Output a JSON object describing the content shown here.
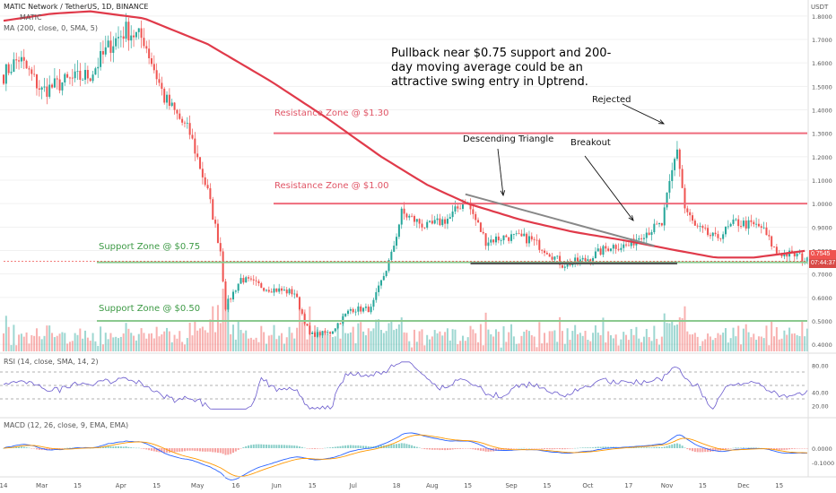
{
  "header": {
    "title": "MATIC Network / TetherUS, 1D, BINANCE",
    "symbol": "MATIC",
    "ma_label": "MA (200, close, 0, SMA, 5)",
    "currency": "USDT"
  },
  "annotations": {
    "note_lines": [
      "Pullback near $0.75 support and 200-",
      "day moving average could be an",
      "attractive swing entry in Uptrend."
    ],
    "rejected": "Rejected",
    "breakout": "Breakout",
    "descending_triangle": "Descending Triangle"
  },
  "zones": {
    "resistance_130": "Resistance Zone @ $1.30",
    "resistance_100": "Resistance Zone @ $1.00",
    "support_075": "Support Zone @ $0.75",
    "support_050": "Support Zone @ $0.50"
  },
  "price_tag": {
    "price": "0.7545",
    "countdown": "07:44:37"
  },
  "colors": {
    "up": "#26a69a",
    "down": "#ef5350",
    "ma": "#e03a4a",
    "resistance": "#ef6b7c",
    "support": "#8bc98f",
    "rsi": "#6a5acd",
    "macd": "#2962ff",
    "signal": "#ff9800",
    "triangle": "#888888"
  },
  "chart_data": {
    "type": "candlestick",
    "price_axis_ticks": [
      "1.8000",
      "1.7000",
      "1.6000",
      "1.5000",
      "1.4000",
      "1.3000",
      "1.2000",
      "1.1000",
      "1.0000",
      "0.9000",
      "0.8000",
      "0.7000",
      "0.6000",
      "0.5000",
      "0.4000"
    ],
    "ylim": [
      0.37,
      1.83
    ],
    "x_labels": [
      "14",
      "Mar",
      "15",
      "Apr",
      "15",
      "May",
      "16",
      "Jun",
      "15",
      "Jul",
      "18",
      "Aug",
      "15",
      "Sep",
      "15",
      "Oct",
      "17",
      "Nov",
      "15",
      "Dec",
      "15"
    ],
    "ohlc_anchors": [
      [
        "Feb 14",
        1.55
      ],
      [
        "Feb 20",
        1.62
      ],
      [
        "Mar 1",
        1.48
      ],
      [
        "Mar 10",
        1.52
      ],
      [
        "Mar 20",
        1.55
      ],
      [
        "Mar 28",
        1.68
      ],
      [
        "Apr 3",
        1.74
      ],
      [
        "Apr 10",
        1.7
      ],
      [
        "Apr 18",
        1.45
      ],
      [
        "Apr 28",
        1.3
      ],
      [
        "May 5",
        1.05
      ],
      [
        "May 10",
        0.8
      ],
      [
        "May 12",
        0.56
      ],
      [
        "May 18",
        0.68
      ],
      [
        "May 28",
        0.64
      ],
      [
        "Jun 8",
        0.62
      ],
      [
        "Jun 14",
        0.44
      ],
      [
        "Jun 22",
        0.45
      ],
      [
        "Jun 30",
        0.55
      ],
      [
        "Jul 8",
        0.55
      ],
      [
        "Jul 16",
        0.78
      ],
      [
        "Jul 20",
        0.96
      ],
      [
        "Jul 30",
        0.9
      ],
      [
        "Aug 8",
        0.94
      ],
      [
        "Aug 14",
        1.02
      ],
      [
        "Aug 22",
        0.84
      ],
      [
        "Aug 30",
        0.86
      ],
      [
        "Sep 8",
        0.85
      ],
      [
        "Sep 15",
        0.8
      ],
      [
        "Sep 21",
        0.74
      ],
      [
        "Sep 30",
        0.76
      ],
      [
        "Oct 10",
        0.82
      ],
      [
        "Oct 17",
        0.82
      ],
      [
        "Oct 22",
        0.87
      ],
      [
        "Oct 30",
        0.91
      ],
      [
        "Nov 2",
        1.08
      ],
      [
        "Nov 5",
        1.24
      ],
      [
        "Nov 8",
        0.98
      ],
      [
        "Nov 12",
        0.9
      ],
      [
        "Nov 20",
        0.85
      ],
      [
        "Nov 28",
        0.92
      ],
      [
        "Dec 8",
        0.9
      ],
      [
        "Dec 14",
        0.79
      ],
      [
        "Dec 22",
        0.78
      ],
      [
        "Dec 26",
        0.7545
      ]
    ],
    "ma200_anchors": [
      [
        "Feb 14",
        1.78
      ],
      [
        "Mar 5",
        1.81
      ],
      [
        "Mar 20",
        1.82
      ],
      [
        "Apr 10",
        1.79
      ],
      [
        "May 5",
        1.68
      ],
      [
        "May 30",
        1.52
      ],
      [
        "Jun 20",
        1.37
      ],
      [
        "Jul 12",
        1.2
      ],
      [
        "Jul 30",
        1.08
      ],
      [
        "Aug 15",
        1.0
      ],
      [
        "Sep 5",
        0.93
      ],
      [
        "Sep 25",
        0.88
      ],
      [
        "Oct 17",
        0.84
      ],
      [
        "Nov 5",
        0.8
      ],
      [
        "Nov 20",
        0.77
      ],
      [
        "Dec 5",
        0.77
      ],
      [
        "Dec 26",
        0.8
      ]
    ],
    "resistance_levels": [
      1.3,
      1.0
    ],
    "support_levels": [
      0.75,
      0.5
    ],
    "rsi": {
      "label": "RSI (14, close, SMA, 14, 2)",
      "ticks": [
        "80.00",
        "40.00",
        "20.00"
      ],
      "overbought": 70,
      "oversold": 30
    },
    "macd": {
      "label": "MACD (12, 26, close, 9, EMA, EMA)",
      "ticks": [
        "0.0000",
        "-0.1000"
      ]
    }
  }
}
